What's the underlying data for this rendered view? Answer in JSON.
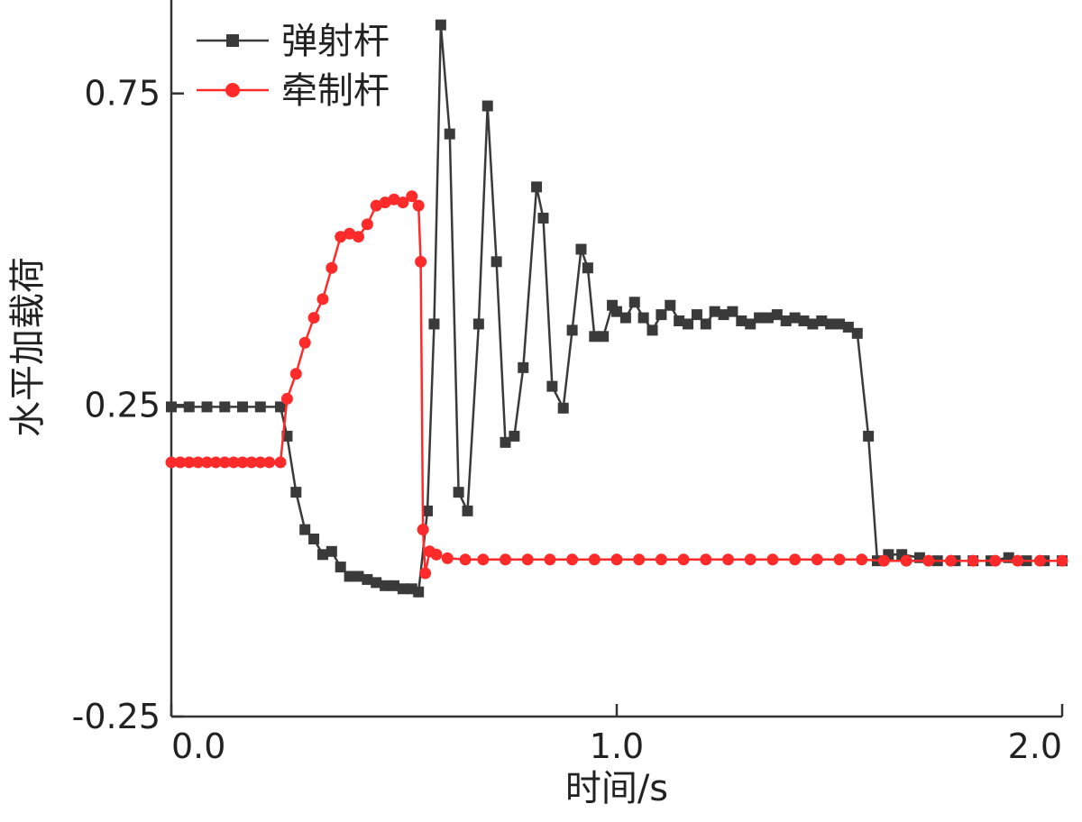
{
  "chart_data": {
    "type": "line",
    "title": "",
    "xlabel": "时间/s",
    "ylabel": "水平加载荷",
    "xlim": [
      0.0,
      2.0
    ],
    "ylim": [
      -0.25,
      0.9
    ],
    "x_ticks": [
      0.0,
      1.0,
      2.0
    ],
    "x_tick_labels": [
      "0.0",
      "1.0",
      "2.0"
    ],
    "y_ticks": [
      -0.25,
      0.25,
      0.75
    ],
    "y_tick_labels": [
      "-0.25",
      "0.25",
      "0.75"
    ],
    "grid": false,
    "legend_position": "top-left",
    "series": [
      {
        "name": "弹射杆",
        "color": "#3a3a3a",
        "marker": "square",
        "points": [
          [
            0.0,
            0.247
          ],
          [
            0.04,
            0.247
          ],
          [
            0.08,
            0.247
          ],
          [
            0.12,
            0.247
          ],
          [
            0.16,
            0.247
          ],
          [
            0.2,
            0.247
          ],
          [
            0.245,
            0.247
          ],
          [
            0.26,
            0.2
          ],
          [
            0.28,
            0.11
          ],
          [
            0.3,
            0.05
          ],
          [
            0.32,
            0.035
          ],
          [
            0.34,
            0.01
          ],
          [
            0.36,
            0.015
          ],
          [
            0.38,
            -0.01
          ],
          [
            0.4,
            -0.025
          ],
          [
            0.42,
            -0.025
          ],
          [
            0.44,
            -0.03
          ],
          [
            0.46,
            -0.035
          ],
          [
            0.48,
            -0.04
          ],
          [
            0.5,
            -0.04
          ],
          [
            0.52,
            -0.045
          ],
          [
            0.54,
            -0.045
          ],
          [
            0.555,
            -0.05
          ],
          [
            0.575,
            0.08
          ],
          [
            0.59,
            0.38
          ],
          [
            0.605,
            0.86
          ],
          [
            0.625,
            0.685
          ],
          [
            0.645,
            0.11
          ],
          [
            0.665,
            0.08
          ],
          [
            0.69,
            0.38
          ],
          [
            0.71,
            0.73
          ],
          [
            0.73,
            0.48
          ],
          [
            0.75,
            0.19
          ],
          [
            0.77,
            0.2
          ],
          [
            0.79,
            0.31
          ],
          [
            0.82,
            0.6
          ],
          [
            0.835,
            0.55
          ],
          [
            0.855,
            0.28
          ],
          [
            0.88,
            0.245
          ],
          [
            0.9,
            0.37
          ],
          [
            0.92,
            0.5
          ],
          [
            0.935,
            0.47
          ],
          [
            0.95,
            0.36
          ],
          [
            0.97,
            0.36
          ],
          [
            0.99,
            0.41
          ],
          [
            1.0,
            0.4
          ],
          [
            1.02,
            0.39
          ],
          [
            1.04,
            0.415
          ],
          [
            1.06,
            0.39
          ],
          [
            1.08,
            0.37
          ],
          [
            1.1,
            0.395
          ],
          [
            1.12,
            0.41
          ],
          [
            1.14,
            0.385
          ],
          [
            1.16,
            0.38
          ],
          [
            1.18,
            0.395
          ],
          [
            1.2,
            0.38
          ],
          [
            1.22,
            0.4
          ],
          [
            1.24,
            0.395
          ],
          [
            1.26,
            0.4
          ],
          [
            1.28,
            0.385
          ],
          [
            1.3,
            0.38
          ],
          [
            1.32,
            0.39
          ],
          [
            1.34,
            0.39
          ],
          [
            1.36,
            0.395
          ],
          [
            1.38,
            0.385
          ],
          [
            1.4,
            0.39
          ],
          [
            1.42,
            0.385
          ],
          [
            1.44,
            0.38
          ],
          [
            1.46,
            0.385
          ],
          [
            1.48,
            0.38
          ],
          [
            1.5,
            0.38
          ],
          [
            1.52,
            0.375
          ],
          [
            1.54,
            0.365
          ],
          [
            1.565,
            0.2
          ],
          [
            1.585,
            0.0
          ],
          [
            1.61,
            0.01
          ],
          [
            1.64,
            0.01
          ],
          [
            1.68,
            0.005
          ],
          [
            1.72,
            0.0
          ],
          [
            1.76,
            0.0
          ],
          [
            1.8,
            0.0
          ],
          [
            1.84,
            0.0
          ],
          [
            1.88,
            0.005
          ],
          [
            1.92,
            0.0
          ],
          [
            1.96,
            0.0
          ],
          [
            2.0,
            0.0
          ]
        ]
      },
      {
        "name": "牵制杆",
        "color": "#ff2a2a",
        "marker": "circle",
        "points": [
          [
            0.0,
            0.158
          ],
          [
            0.02,
            0.158
          ],
          [
            0.04,
            0.158
          ],
          [
            0.06,
            0.158
          ],
          [
            0.08,
            0.158
          ],
          [
            0.1,
            0.158
          ],
          [
            0.12,
            0.158
          ],
          [
            0.14,
            0.158
          ],
          [
            0.16,
            0.158
          ],
          [
            0.18,
            0.158
          ],
          [
            0.2,
            0.158
          ],
          [
            0.22,
            0.158
          ],
          [
            0.245,
            0.158
          ],
          [
            0.26,
            0.26
          ],
          [
            0.28,
            0.3
          ],
          [
            0.3,
            0.35
          ],
          [
            0.32,
            0.39
          ],
          [
            0.34,
            0.42
          ],
          [
            0.36,
            0.47
          ],
          [
            0.38,
            0.52
          ],
          [
            0.4,
            0.525
          ],
          [
            0.42,
            0.52
          ],
          [
            0.44,
            0.54
          ],
          [
            0.46,
            0.57
          ],
          [
            0.48,
            0.575
          ],
          [
            0.5,
            0.58
          ],
          [
            0.52,
            0.575
          ],
          [
            0.54,
            0.585
          ],
          [
            0.555,
            0.57
          ],
          [
            0.56,
            0.48
          ],
          [
            0.565,
            0.05
          ],
          [
            0.57,
            -0.02
          ],
          [
            0.58,
            0.015
          ],
          [
            0.595,
            0.01
          ],
          [
            0.62,
            0.004
          ],
          [
            0.66,
            0.002
          ],
          [
            0.7,
            0.002
          ],
          [
            0.75,
            0.002
          ],
          [
            0.8,
            0.002
          ],
          [
            0.85,
            0.002
          ],
          [
            0.9,
            0.002
          ],
          [
            0.95,
            0.002
          ],
          [
            1.0,
            0.002
          ],
          [
            1.05,
            0.002
          ],
          [
            1.1,
            0.002
          ],
          [
            1.15,
            0.002
          ],
          [
            1.2,
            0.002
          ],
          [
            1.25,
            0.002
          ],
          [
            1.3,
            0.002
          ],
          [
            1.35,
            0.002
          ],
          [
            1.4,
            0.002
          ],
          [
            1.45,
            0.002
          ],
          [
            1.5,
            0.002
          ],
          [
            1.55,
            0.002
          ],
          [
            1.6,
            0.0
          ],
          [
            1.65,
            0.0
          ],
          [
            1.7,
            0.0
          ],
          [
            1.75,
            0.0
          ],
          [
            1.8,
            0.0
          ],
          [
            1.85,
            0.0
          ],
          [
            1.9,
            0.0
          ],
          [
            1.95,
            0.0
          ],
          [
            2.0,
            0.0
          ]
        ]
      }
    ]
  }
}
